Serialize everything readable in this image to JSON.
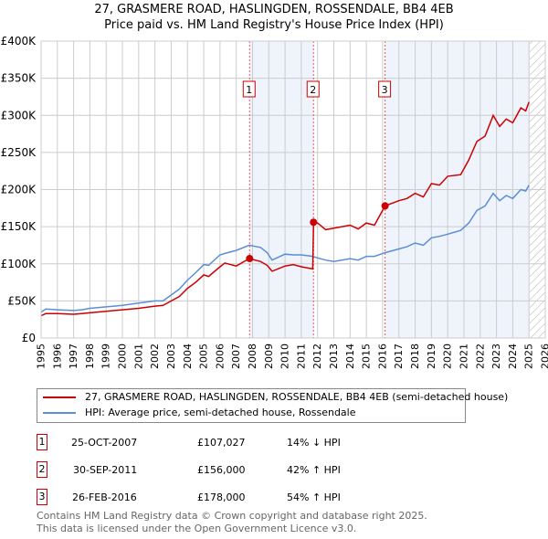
{
  "chart_data": {
    "type": "line",
    "title": "27, GRASMERE ROAD, HASLINGDEN, ROSSENDALE, BB4 4EB",
    "subtitle": "Price paid vs. HM Land Registry's House Price Index (HPI)",
    "ylim": [
      0,
      400000
    ],
    "xlim": [
      1995,
      2026
    ],
    "yticks": [
      {
        "v": 0,
        "label": "£0"
      },
      {
        "v": 50000,
        "label": "£50K"
      },
      {
        "v": 100000,
        "label": "£100K"
      },
      {
        "v": 150000,
        "label": "£150K"
      },
      {
        "v": 200000,
        "label": "£200K"
      },
      {
        "v": 250000,
        "label": "£250K"
      },
      {
        "v": 300000,
        "label": "£300K"
      },
      {
        "v": 350000,
        "label": "£350K"
      },
      {
        "v": 400000,
        "label": "£400K"
      }
    ],
    "xticks": [
      "1995",
      "1996",
      "1997",
      "1998",
      "1999",
      "2000",
      "2001",
      "2002",
      "2003",
      "2004",
      "2005",
      "2006",
      "2007",
      "2008",
      "2009",
      "2010",
      "2011",
      "2012",
      "2013",
      "2014",
      "2015",
      "2016",
      "2017",
      "2018",
      "2019",
      "2020",
      "2021",
      "2022",
      "2023",
      "2024",
      "2025",
      "2026"
    ],
    "series": [
      {
        "name": "27, GRASMERE ROAD, HASLINGDEN, ROSSENDALE, BB4 4EB (semi-detached house)",
        "color": "#cc0000",
        "x": [
          1995,
          1995.3,
          1996,
          1997,
          1997.5,
          1998,
          1999,
          2000,
          2001,
          2002,
          2002.5,
          2003,
          2003.5,
          2004,
          2004.5,
          2005,
          2005.3,
          2006,
          2006.3,
          2007,
          2007.8,
          2008.5,
          2008.9,
          2009.2,
          2010,
          2010.5,
          2011,
          2011.7,
          2011.75,
          2012,
          2012.5,
          2013,
          2014,
          2014.5,
          2015,
          2015.5,
          2016.15,
          2017,
          2017.5,
          2018,
          2018.5,
          2019,
          2019.5,
          2020,
          2020.8,
          2021.3,
          2021.8,
          2022.3,
          2022.8,
          2023.2,
          2023.6,
          2024,
          2024.5,
          2024.8,
          2025
        ],
        "values": [
          30000,
          33000,
          33000,
          32000,
          33000,
          34000,
          36000,
          38000,
          40000,
          43000,
          44000,
          50000,
          56000,
          67000,
          75000,
          85000,
          83000,
          96000,
          101000,
          97000,
          107027,
          103000,
          98000,
          90000,
          97000,
          99000,
          96000,
          93000,
          156000,
          155000,
          146000,
          148000,
          152000,
          147000,
          155000,
          152000,
          178000,
          185000,
          188000,
          195000,
          190000,
          208000,
          206000,
          218000,
          220000,
          240000,
          265000,
          272000,
          300000,
          285000,
          295000,
          290000,
          310000,
          306000,
          318000
        ]
      },
      {
        "name": "HPI: Average price, semi-detached house, Rossendale",
        "color": "#5b8fd4",
        "x": [
          1995,
          1995.3,
          1996,
          1997,
          1997.5,
          1998,
          1999,
          2000,
          2001,
          2002,
          2002.5,
          2003,
          2003.5,
          2004,
          2004.5,
          2005,
          2005.3,
          2006,
          2006.3,
          2007,
          2007.8,
          2008.5,
          2008.9,
          2009.2,
          2010,
          2010.5,
          2011,
          2011.7,
          2012,
          2012.5,
          2013,
          2014,
          2014.5,
          2015,
          2015.5,
          2016.15,
          2017,
          2017.5,
          2018,
          2018.5,
          2019,
          2019.5,
          2020,
          2020.8,
          2021.3,
          2021.8,
          2022.3,
          2022.8,
          2023.2,
          2023.6,
          2024,
          2024.5,
          2024.8,
          2025
        ],
        "values": [
          35000,
          39000,
          38000,
          37000,
          38000,
          40000,
          42000,
          44000,
          47000,
          50000,
          50000,
          58000,
          66000,
          78000,
          88000,
          99000,
          98000,
          112000,
          114000,
          118000,
          125000,
          122000,
          115000,
          105000,
          113000,
          112000,
          112000,
          110000,
          108000,
          105000,
          103000,
          107000,
          105000,
          110000,
          110000,
          115000,
          120000,
          123000,
          128000,
          125000,
          135000,
          137000,
          140000,
          145000,
          155000,
          172000,
          178000,
          195000,
          185000,
          192000,
          188000,
          200000,
          198000,
          206000
        ]
      }
    ],
    "sales": [
      {
        "n": "1",
        "date": "25-OCT-2007",
        "x": 2007.82,
        "price": "£107,027",
        "value": 107027,
        "hpi": "14% ↓ HPI"
      },
      {
        "n": "2",
        "date": "30-SEP-2011",
        "x": 2011.75,
        "price": "£156,000",
        "value": 156000,
        "hpi": "42% ↑ HPI"
      },
      {
        "n": "3",
        "date": "26-FEB-2016",
        "x": 2016.15,
        "price": "£178,000",
        "value": 178000,
        "hpi": "54% ↑ HPI"
      }
    ],
    "shaded": [
      [
        2007.82,
        2011.75
      ],
      [
        2016.15,
        2025.05
      ]
    ],
    "hatched": [
      2025.05,
      2026
    ],
    "footer1": "Contains HM Land Registry data © Crown copyright and database right 2025.",
    "footer2": "This data is licensed under the Open Government Licence v3.0."
  }
}
